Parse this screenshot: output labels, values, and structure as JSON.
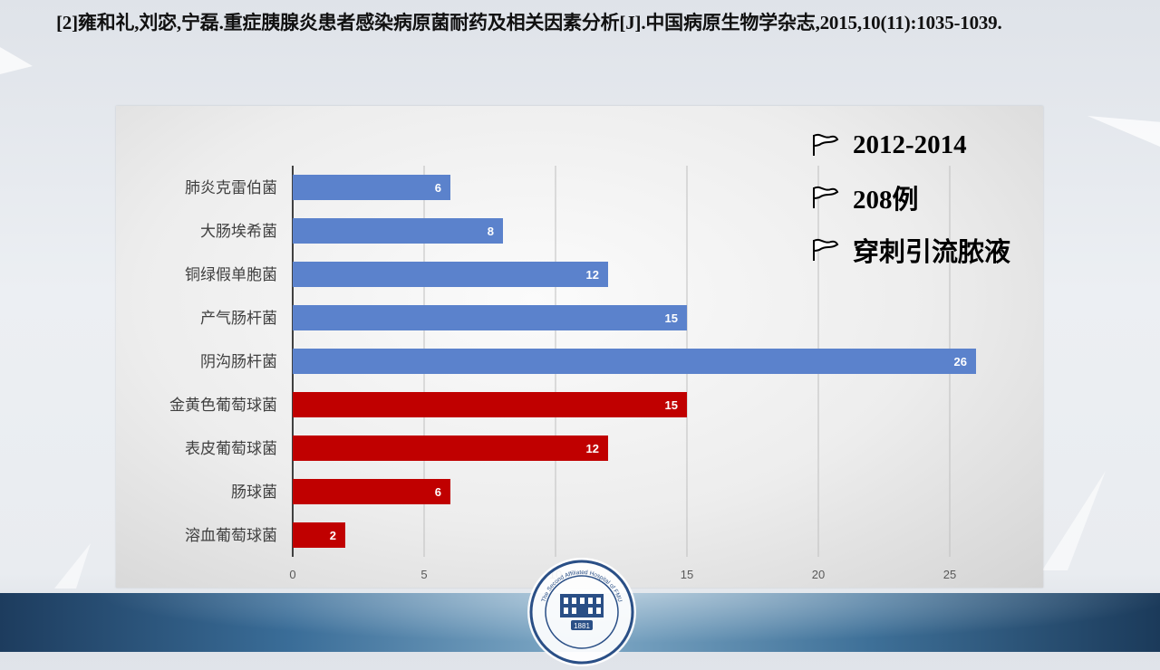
{
  "citation": "[2]雍和礼,刘宓,宁磊.重症胰腺炎患者感染病原菌耐药及相关因素分析[J].中国病原生物学杂志,2015,10(11):1035-1039.",
  "notes": [
    "2012-2014",
    "208例",
    "穿刺引流脓液"
  ],
  "note_icon": "flag-icon",
  "emblem": {
    "year": "1881",
    "motto": "The Second Affiliated Hospital of FMU"
  },
  "colors": {
    "gram_negative": "#5b82cc",
    "gram_positive": "#c00000",
    "bar_label": "#ffffff"
  },
  "chart_data": {
    "type": "bar",
    "orientation": "horizontal",
    "categories": [
      "肺炎克雷伯菌",
      "大肠埃希菌",
      "铜绿假单胞菌",
      "产气肠杆菌",
      "阴沟肠杆菌",
      "金黄色葡萄球菌",
      "表皮葡萄球菌",
      "肠球菌",
      "溶血葡萄球菌"
    ],
    "values": [
      6,
      8,
      12,
      15,
      26,
      15,
      12,
      6,
      2
    ],
    "bar_colors": [
      "#5b82cc",
      "#5b82cc",
      "#5b82cc",
      "#5b82cc",
      "#5b82cc",
      "#c00000",
      "#c00000",
      "#c00000",
      "#c00000"
    ],
    "xlim": [
      0,
      25
    ],
    "xticks": [
      0,
      5,
      10,
      15,
      20,
      25
    ],
    "grid": true,
    "data_labels": true,
    "title": "",
    "xlabel": "",
    "ylabel": ""
  }
}
